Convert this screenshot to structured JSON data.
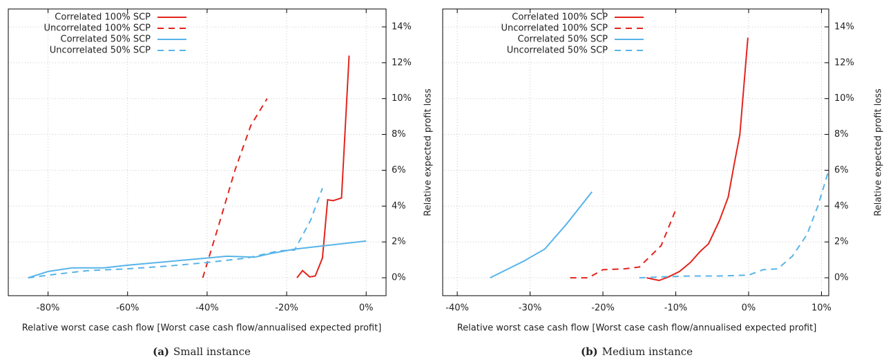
{
  "chart_data": [
    {
      "type": "line",
      "caption_label": "(a)",
      "caption": "Small instance",
      "xlabel": "Relative worst case cash flow [Worst case cash flow/annualised expected profit]",
      "ylabel": "Relative expected profit loss",
      "xlim": [
        -90,
        5
      ],
      "ylim": [
        -1,
        15
      ],
      "xticks": [
        {
          "value": -80,
          "label": "-80%"
        },
        {
          "value": -60,
          "label": "-60%"
        },
        {
          "value": -40,
          "label": "-40%"
        },
        {
          "value": -20,
          "label": "-20%"
        },
        {
          "value": 0,
          "label": "0%"
        }
      ],
      "yticks": [
        {
          "value": 0,
          "label": "0%"
        },
        {
          "value": 2,
          "label": "2%"
        },
        {
          "value": 4,
          "label": "4%"
        },
        {
          "value": 6,
          "label": "6%"
        },
        {
          "value": 8,
          "label": "8%"
        },
        {
          "value": 10,
          "label": "10%"
        },
        {
          "value": 12,
          "label": "12%"
        },
        {
          "value": 14,
          "label": "14%"
        }
      ],
      "grid": true,
      "legend": "upper left",
      "series": [
        {
          "name": "Correlated 100% SCP",
          "color": "#e3231b",
          "dash": false,
          "x": [
            -17.4,
            -16,
            -14.2,
            -12.8,
            -11,
            -9.7,
            -8.3,
            -6.2,
            -4.3
          ],
          "values": [
            0,
            0.4,
            0.05,
            0.1,
            1.1,
            4.35,
            4.3,
            4.45,
            12.4
          ]
        },
        {
          "name": "Uncorrelated 100% SCP",
          "color": "#e3231b",
          "dash": true,
          "x": [
            -41.1,
            -37,
            -33,
            -29,
            -24.9
          ],
          "values": [
            0,
            3,
            6,
            8.5,
            10
          ]
        },
        {
          "name": "Correlated 50% SCP",
          "color": "#56b4e9",
          "dash": false,
          "x": [
            -85,
            -80,
            -74,
            -66,
            -60,
            -50,
            -40,
            -35,
            -28,
            -24,
            -18,
            -10,
            0
          ],
          "values": [
            0,
            0.35,
            0.55,
            0.55,
            0.7,
            0.9,
            1.1,
            1.2,
            1.15,
            1.35,
            1.6,
            1.8,
            2.05
          ]
        },
        {
          "name": "Uncorrelated 50% SCP",
          "color": "#56b4e9",
          "dash": true,
          "x": [
            -85,
            -78,
            -70,
            -60,
            -50,
            -40,
            -30,
            -22,
            -18,
            -14,
            -11
          ],
          "values": [
            0,
            0.2,
            0.4,
            0.5,
            0.65,
            0.85,
            1.1,
            1.5,
            1.55,
            3.2,
            5.0
          ]
        }
      ]
    },
    {
      "type": "line",
      "caption_label": "(b)",
      "caption": "Medium instance",
      "xlabel": "Relative worst case cash flow [Worst case cash flow/annualised expected profit]",
      "ylabel": "Relative expected profit loss",
      "xlim": [
        -42,
        11
      ],
      "ylim": [
        -1,
        15
      ],
      "xticks": [
        {
          "value": -40,
          "label": "-40%"
        },
        {
          "value": -30,
          "label": "-30%"
        },
        {
          "value": -20,
          "label": "-20%"
        },
        {
          "value": -10,
          "label": "-10%"
        },
        {
          "value": 0,
          "label": "0%"
        },
        {
          "value": 10,
          "label": "10%"
        }
      ],
      "yticks": [
        {
          "value": 0,
          "label": "0%"
        },
        {
          "value": 2,
          "label": "2%"
        },
        {
          "value": 4,
          "label": "4%"
        },
        {
          "value": 6,
          "label": "6%"
        },
        {
          "value": 8,
          "label": "8%"
        },
        {
          "value": 10,
          "label": "10%"
        },
        {
          "value": 12,
          "label": "12%"
        },
        {
          "value": 14,
          "label": "14%"
        }
      ],
      "grid": true,
      "legend": "upper left",
      "series": [
        {
          "name": "Correlated 100% SCP",
          "color": "#e3231b",
          "dash": false,
          "x": [
            -14,
            -12.3,
            -11,
            -9.5,
            -8,
            -6.7,
            -5.5,
            -4,
            -2.8,
            -2,
            -1.2,
            -0.1
          ],
          "values": [
            0,
            -0.15,
            0.05,
            0.35,
            0.85,
            1.45,
            1.9,
            3.2,
            4.5,
            6.3,
            8,
            13.4
          ]
        },
        {
          "name": "Uncorrelated 100% SCP",
          "color": "#e3231b",
          "dash": true,
          "x": [
            -24.5,
            -22,
            -20,
            -17,
            -15,
            -13.5,
            -12,
            -10
          ],
          "values": [
            0,
            0,
            0.45,
            0.5,
            0.6,
            1.2,
            1.8,
            3.8
          ]
        },
        {
          "name": "Correlated 50% SCP",
          "color": "#56b4e9",
          "dash": false,
          "x": [
            -35.5,
            -33,
            -31,
            -28,
            -25,
            -21.5
          ],
          "values": [
            0,
            0.5,
            0.9,
            1.6,
            3,
            4.8
          ]
        },
        {
          "name": "Uncorrelated 50% SCP",
          "color": "#56b4e9",
          "dash": true,
          "x": [
            -15,
            -12,
            -8,
            -4,
            0,
            2,
            4,
            6,
            8,
            9.5,
            11
          ],
          "values": [
            0,
            0.05,
            0.1,
            0.1,
            0.15,
            0.45,
            0.5,
            1.2,
            2.4,
            4,
            6
          ]
        }
      ]
    }
  ]
}
